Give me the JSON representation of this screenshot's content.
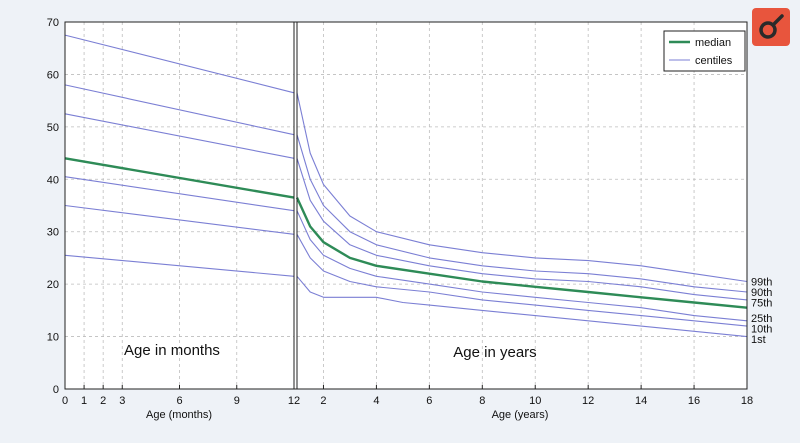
{
  "chart_data": {
    "type": "line",
    "title": "",
    "ylabel": "",
    "ylim": [
      0,
      70
    ],
    "yticks": [
      0,
      10,
      20,
      30,
      40,
      50,
      60,
      70
    ],
    "legend": {
      "position": "top-right",
      "entries": [
        {
          "label": "median",
          "color": "#2e8b57"
        },
        {
          "label": "centiles",
          "color": "#7b7fd4"
        }
      ]
    },
    "colors": {
      "median": "#2e8b57",
      "centile": "#7b7fd4",
      "grid": "#bdbdbd",
      "logo_bg": "#e8553d"
    },
    "panels": [
      {
        "id": "months",
        "xlabel": "Age (months)",
        "panel_label": "Age in months",
        "xlim": [
          0,
          12
        ],
        "xticks": [
          0,
          1,
          2,
          3,
          6,
          9,
          12
        ],
        "series": [
          {
            "name": "99th",
            "kind": "centile",
            "x": [
              0,
              12
            ],
            "y": [
              67.5,
              56.5
            ]
          },
          {
            "name": "90th",
            "kind": "centile",
            "x": [
              0,
              12
            ],
            "y": [
              58.0,
              48.5
            ]
          },
          {
            "name": "75th",
            "kind": "centile",
            "x": [
              0,
              12
            ],
            "y": [
              52.5,
              44.0
            ]
          },
          {
            "name": "median",
            "kind": "median",
            "x": [
              0,
              12
            ],
            "y": [
              44.0,
              36.5
            ]
          },
          {
            "name": "25th",
            "kind": "centile",
            "x": [
              0,
              12
            ],
            "y": [
              40.5,
              34.0
            ]
          },
          {
            "name": "10th",
            "kind": "centile",
            "x": [
              0,
              12
            ],
            "y": [
              35.0,
              29.5
            ]
          },
          {
            "name": "1st",
            "kind": "centile",
            "x": [
              0,
              12
            ],
            "y": [
              25.5,
              21.5
            ]
          }
        ]
      },
      {
        "id": "years",
        "xlabel": "Age (years)",
        "panel_label": "Age in years",
        "xlim": [
          1,
          18
        ],
        "xticks": [
          2,
          4,
          6,
          8,
          10,
          12,
          14,
          16,
          18
        ],
        "series": [
          {
            "name": "99th",
            "kind": "centile",
            "x": [
              1,
              1.5,
              2,
              3,
              4,
              6,
              8,
              10,
              12,
              14,
              16,
              18
            ],
            "y": [
              56.5,
              45.0,
              39.0,
              33.0,
              30.0,
              27.5,
              26.0,
              25.0,
              24.5,
              23.5,
              22.0,
              20.5
            ]
          },
          {
            "name": "90th",
            "kind": "centile",
            "x": [
              1,
              1.5,
              2,
              3,
              4,
              6,
              8,
              10,
              12,
              14,
              16,
              18
            ],
            "y": [
              48.5,
              40.0,
              35.0,
              30.0,
              27.5,
              25.0,
              23.5,
              22.5,
              22.0,
              21.0,
              19.5,
              18.5
            ]
          },
          {
            "name": "75th",
            "kind": "centile",
            "x": [
              1,
              1.5,
              2,
              3,
              4,
              6,
              8,
              10,
              12,
              14,
              16,
              18
            ],
            "y": [
              44.0,
              36.0,
              32.0,
              27.5,
              25.5,
              23.5,
              22.0,
              21.0,
              20.5,
              19.5,
              18.0,
              17.0
            ]
          },
          {
            "name": "median",
            "kind": "median",
            "x": [
              1,
              1.5,
              2,
              3,
              4,
              6,
              8,
              10,
              12,
              14,
              16,
              18
            ],
            "y": [
              36.5,
              31.0,
              28.0,
              25.0,
              23.5,
              22.0,
              20.5,
              19.5,
              18.5,
              17.5,
              16.5,
              15.5
            ]
          },
          {
            "name": "25th",
            "kind": "centile",
            "x": [
              1,
              1.5,
              2,
              3,
              4,
              6,
              8,
              10,
              12,
              14,
              16,
              18
            ],
            "y": [
              34.0,
              28.5,
              25.5,
              23.0,
              21.5,
              20.0,
              18.5,
              17.5,
              16.5,
              15.5,
              14.0,
              13.0
            ]
          },
          {
            "name": "10th",
            "kind": "centile",
            "x": [
              1,
              1.5,
              2,
              3,
              4,
              6,
              8,
              10,
              12,
              14,
              16,
              18
            ],
            "y": [
              29.5,
              25.0,
              22.5,
              20.5,
              19.5,
              18.5,
              17.0,
              16.0,
              15.0,
              14.0,
              13.0,
              12.0
            ]
          },
          {
            "name": "1st",
            "kind": "centile",
            "x": [
              1,
              1.5,
              2,
              3,
              4,
              5,
              6,
              8,
              10,
              12,
              14,
              16,
              18
            ],
            "y": [
              21.5,
              18.5,
              17.5,
              17.5,
              17.5,
              16.5,
              16.0,
              15.0,
              14.0,
              13.0,
              12.0,
              11.0,
              10.0
            ]
          }
        ]
      }
    ],
    "centile_labels": [
      {
        "label": "99th",
        "y": 20.5
      },
      {
        "label": "90th",
        "y": 18.5
      },
      {
        "label": "75th",
        "y": 16.5
      },
      {
        "label": "25th",
        "y": 13.5
      },
      {
        "label": "10th",
        "y": 11.5
      },
      {
        "label": "1st",
        "y": 9.5
      }
    ]
  }
}
